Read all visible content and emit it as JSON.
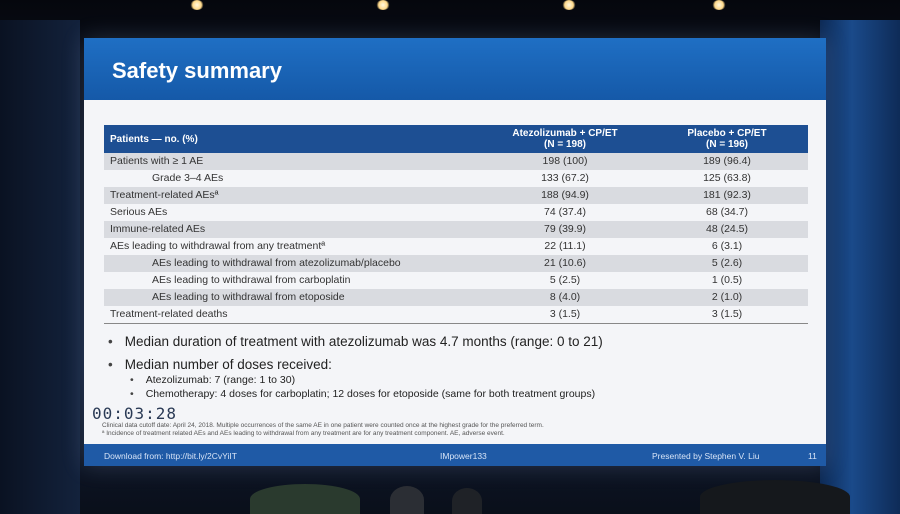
{
  "slide": {
    "title": "Safety summary",
    "table": {
      "headers": {
        "col1": "Patients — no. (%)",
        "col2_line1": "Atezolizumab + CP/ET",
        "col2_line2": "(N = 198)",
        "col3_line1": "Placebo + CP/ET",
        "col3_line2": "(N = 196)"
      },
      "rows": [
        {
          "label": "Patients with ≥ 1 AE",
          "atezo": "198 (100)",
          "placebo": "189 (96.4)"
        },
        {
          "label": "Grade 3–4 AEs",
          "atezo": "133 (67.2)",
          "placebo": "125 (63.8)"
        },
        {
          "label": "Treatment-related AEsª",
          "atezo": "188 (94.9)",
          "placebo": "181 (92.3)"
        },
        {
          "label": "Serious AEs",
          "atezo": "74 (37.4)",
          "placebo": "68 (34.7)"
        },
        {
          "label": "Immune-related AEs",
          "atezo": "79 (39.9)",
          "placebo": "48 (24.5)"
        },
        {
          "label": "AEs leading to withdrawal from any treatmentª",
          "atezo": "22 (11.1)",
          "placebo": "6 (3.1)"
        },
        {
          "label": "AEs leading to withdrawal from atezolizumab/placebo",
          "atezo": "21 (10.6)",
          "placebo": "5 (2.6)"
        },
        {
          "label": "AEs leading to withdrawal from carboplatin",
          "atezo": "5 (2.5)",
          "placebo": "1 (0.5)"
        },
        {
          "label": "AEs leading to withdrawal from etoposide",
          "atezo": "8 (4.0)",
          "placebo": "2 (1.0)"
        },
        {
          "label": "Treatment-related deaths",
          "atezo": "3 (1.5)",
          "placebo": "3 (1.5)"
        }
      ]
    },
    "bullets": {
      "median_duration": "Median duration of treatment with atezolizumab was 4.7 months (range: 0 to 21)",
      "median_doses": "Median number of doses received:",
      "atezo_doses": "Atezolizumab: 7 (range: 1 to 30)",
      "chemo_doses": "Chemotherapy: 4 doses for carboplatin; 12 doses for etoposide (same for both treatment groups)"
    },
    "timestamp": "00:03:28",
    "footnotes": {
      "line1": "Clinical data cutoff date: April 24, 2018. Multiple occurrences of the same AE in one patient were counted once at the highest grade for the preferred term.",
      "line2": "ª Incidence of treatment related AEs and AEs leading to withdrawal from any treatment are for any treatment component. AE, adverse event."
    },
    "footer": {
      "download": "Download from: http://bit.ly/2CvYiIT",
      "study": "IMpower133",
      "presenter": "Presented by Stephen V. Liu",
      "page": "11"
    }
  }
}
